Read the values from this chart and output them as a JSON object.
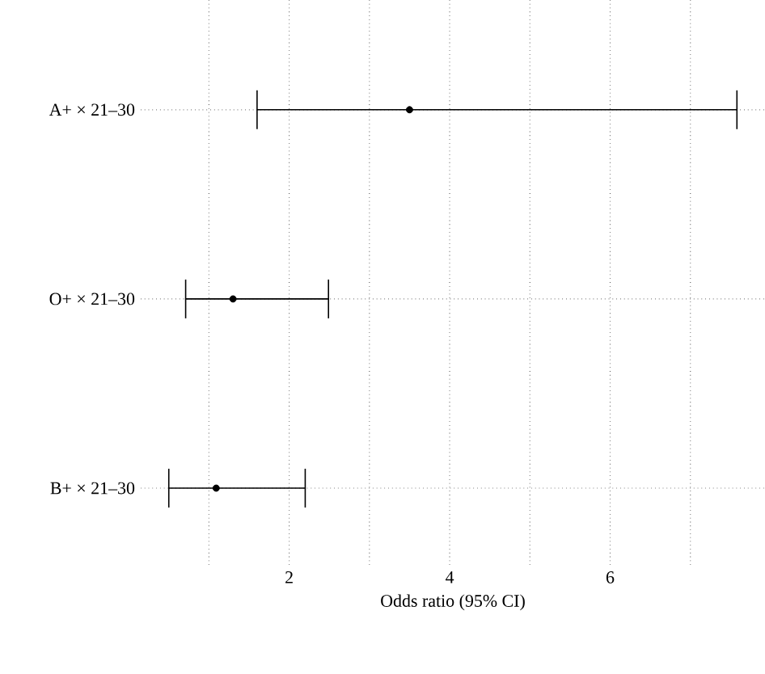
{
  "chart_data": {
    "type": "scatter",
    "orientation": "horizontal",
    "xlabel": "Odds ratio (95% CI)",
    "categories": [
      "A+ × 21–30",
      "O+ × 21–30",
      "B+ × 21–30"
    ],
    "values": [
      3.5,
      1.3,
      1.09
    ],
    "errors": [
      [
        1.6,
        7.58
      ],
      [
        0.71,
        2.49
      ],
      [
        0.5,
        2.2
      ]
    ],
    "color": "#000000",
    "marker": "circle",
    "grid": true,
    "xlim": [
      0.15,
      7.93
    ],
    "xticks": [
      {
        "value": 1,
        "label": null
      },
      2,
      {
        "value": 3,
        "label": null
      },
      4,
      {
        "value": 5,
        "label": null
      },
      6,
      {
        "value": 7,
        "label": null
      }
    ]
  }
}
